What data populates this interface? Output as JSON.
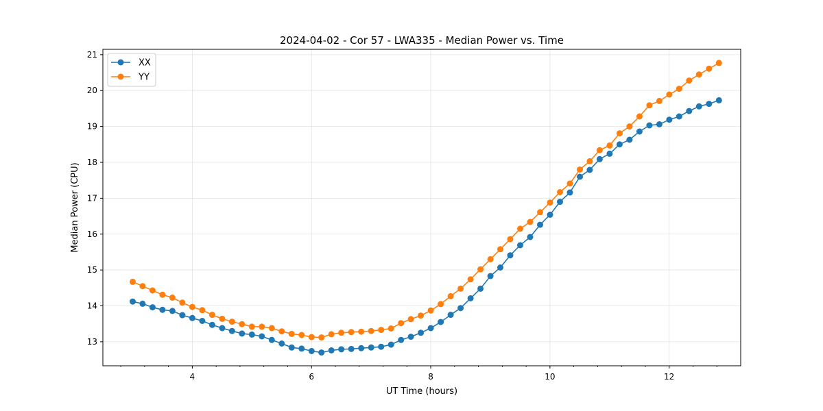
{
  "chart_data": {
    "type": "line",
    "title": "2024-04-02 - Cor 57 - LWA335 - Median Power vs. Time",
    "xlabel": "UT Time (hours)",
    "ylabel": "Median Power (CPU)",
    "xlim": [
      2.5,
      13.2
    ],
    "ylim": [
      12.33,
      21.15
    ],
    "xticks": [
      4,
      6,
      8,
      10,
      12
    ],
    "xtick_labels": [
      "4",
      "6",
      "8",
      "10",
      "12"
    ],
    "yticks": [
      13,
      14,
      15,
      16,
      17,
      18,
      19,
      20,
      21
    ],
    "ytick_labels": [
      "13",
      "14",
      "15",
      "16",
      "17",
      "18",
      "19",
      "20",
      "21"
    ],
    "grid": true,
    "legend_position": "top-left",
    "x_start": 3.0,
    "x_step": 0.1667,
    "series": [
      {
        "name": "XX",
        "color": "#1f77b4",
        "values": [
          14.12,
          14.06,
          13.96,
          13.89,
          13.86,
          13.74,
          13.66,
          13.58,
          13.47,
          13.38,
          13.3,
          13.23,
          13.2,
          13.15,
          13.05,
          12.95,
          12.84,
          12.81,
          12.74,
          12.7,
          12.76,
          12.79,
          12.8,
          12.82,
          12.84,
          12.86,
          12.92,
          13.05,
          13.14,
          13.25,
          13.38,
          13.55,
          13.75,
          13.94,
          14.21,
          14.48,
          14.83,
          15.07,
          15.41,
          15.69,
          15.92,
          16.26,
          16.54,
          16.9,
          17.16,
          17.6,
          17.79,
          18.09,
          18.24,
          18.5,
          18.63,
          18.86,
          19.03,
          19.06,
          19.19,
          19.28,
          19.43,
          19.56,
          19.63,
          19.73
        ]
      },
      {
        "name": "YY",
        "color": "#ff7f0e",
        "values": [
          14.67,
          14.55,
          14.43,
          14.31,
          14.23,
          14.09,
          13.97,
          13.88,
          13.75,
          13.64,
          13.56,
          13.49,
          13.42,
          13.42,
          13.38,
          13.29,
          13.22,
          13.19,
          13.13,
          13.12,
          13.21,
          13.25,
          13.27,
          13.28,
          13.3,
          13.33,
          13.37,
          13.52,
          13.63,
          13.73,
          13.87,
          14.05,
          14.27,
          14.48,
          14.74,
          15.02,
          15.3,
          15.58,
          15.86,
          16.15,
          16.34,
          16.61,
          16.88,
          17.17,
          17.41,
          17.8,
          18.03,
          18.34,
          18.47,
          18.81,
          19.0,
          19.28,
          19.59,
          19.71,
          19.89,
          20.05,
          20.28,
          20.45,
          20.61,
          20.77
        ]
      }
    ]
  }
}
